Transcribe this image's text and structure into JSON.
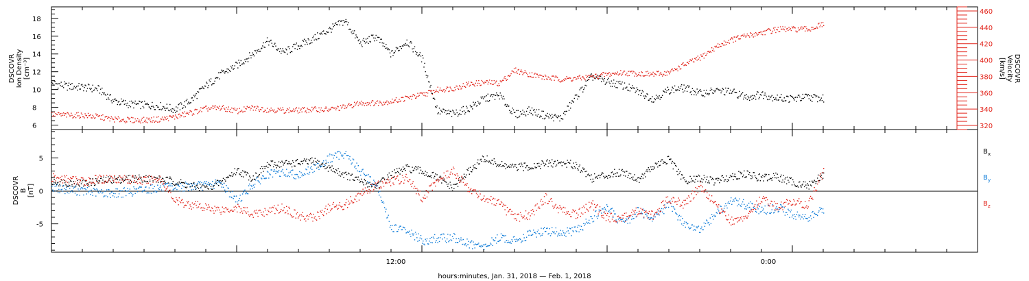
{
  "colors": {
    "black": "#000000",
    "red": "#e2231a",
    "blue": "#0a7ad8"
  },
  "chart_data": [
    {
      "type": "scatter",
      "panel": "top",
      "left_axis": {
        "label_lines": [
          "DSCOVR",
          "Ion Density",
          "[cm⁻³]"
        ],
        "ticks": [
          6,
          8,
          10,
          12,
          14,
          16,
          18
        ],
        "ylim": [
          5.5,
          19.3
        ]
      },
      "right_axis": {
        "label_lines": [
          "DSCOVR",
          "Velocity",
          "[km/s]"
        ],
        "ticks": [
          320,
          340,
          360,
          380,
          400,
          420,
          440,
          460
        ],
        "ylim": [
          315,
          465
        ]
      },
      "series": [
        {
          "axis": "left",
          "color": "#000000",
          "x": [
            0,
            0.5,
            1,
            1.5,
            2,
            2.5,
            3,
            3.5,
            4,
            4.5,
            5,
            5.5,
            6,
            6.5,
            7,
            7.5,
            8,
            8.5,
            9,
            9.5,
            10,
            10.5,
            11,
            11.5,
            12,
            12.5,
            13,
            13.5,
            14,
            14.5,
            15,
            15.5,
            16,
            16.5,
            17,
            17.5,
            18,
            18.5,
            19,
            19.5,
            20,
            20.5,
            21,
            21.5,
            22,
            22.5,
            23,
            23.5,
            24,
            24.5,
            25
          ],
          "y": [
            10.8,
            10.4,
            10.3,
            10.1,
            8.8,
            8.4,
            8.3,
            8.2,
            7.8,
            8.8,
            10.5,
            11.8,
            12.8,
            14.0,
            15.5,
            14.2,
            15.0,
            15.8,
            16.8,
            17.8,
            15.2,
            16.0,
            14.0,
            15.5,
            13.5,
            7.6,
            7.3,
            7.9,
            9.0,
            9.4,
            7.2,
            7.7,
            7.1,
            6.8,
            9.3,
            11.5,
            10.9,
            10.5,
            9.8,
            9.0,
            10.0,
            10.2,
            9.6,
            9.9,
            9.8,
            9.2,
            9.5,
            9.1,
            9.0,
            9.2,
            9.0
          ]
        },
        {
          "axis": "right",
          "color": "#e2231a",
          "x": [
            0,
            0.5,
            1,
            1.5,
            2,
            2.5,
            3,
            3.5,
            4,
            4.5,
            5,
            5.5,
            6,
            6.5,
            7,
            7.5,
            8,
            8.5,
            9,
            9.5,
            10,
            10.5,
            11,
            11.5,
            12,
            12.5,
            13,
            13.5,
            14,
            14.5,
            15,
            15.5,
            16,
            16.5,
            17,
            17.5,
            18,
            18.5,
            19,
            19.5,
            20,
            20.5,
            21,
            21.5,
            22,
            22.5,
            23,
            23.5,
            24,
            24.5,
            25
          ],
          "y": [
            334,
            333,
            333,
            331,
            328,
            327,
            327,
            328,
            331,
            336,
            341,
            342,
            338,
            342,
            340,
            339,
            339,
            340,
            340,
            343,
            348,
            348,
            350,
            354,
            358,
            364,
            366,
            371,
            373,
            372,
            388,
            383,
            379,
            377,
            378,
            380,
            383,
            385,
            384,
            383,
            385,
            395,
            403,
            416,
            425,
            430,
            434,
            438,
            438,
            438,
            444
          ]
        }
      ]
    },
    {
      "type": "scatter",
      "panel": "bottom",
      "left_axis": {
        "label_lines": [
          "DSCOVR",
          "B",
          "[nT]"
        ],
        "ticks": [
          -5,
          0,
          5
        ],
        "ylim": [
          -9.3,
          9.3
        ]
      },
      "legend": [
        {
          "label": "B",
          "sub": "x",
          "color": "#000000"
        },
        {
          "label": "B",
          "sub": "y",
          "color": "#0a7ad8"
        },
        {
          "label": "B",
          "sub": "z",
          "color": "#e2231a"
        }
      ],
      "series": [
        {
          "name": "Bx",
          "color": "#000000",
          "x": [
            0,
            0.5,
            1,
            1.5,
            2,
            2.5,
            3,
            3.5,
            4,
            4.5,
            5,
            5.5,
            6,
            6.5,
            7,
            7.5,
            8,
            8.5,
            9,
            9.5,
            10,
            10.5,
            11,
            11.5,
            12,
            12.5,
            13,
            13.5,
            14,
            14.5,
            15,
            15.5,
            16,
            16.5,
            17,
            17.5,
            18,
            18.5,
            19,
            19.5,
            20,
            20.5,
            21,
            21.5,
            22,
            22.5,
            23,
            23.5,
            24,
            24.5,
            25
          ],
          "y": [
            1.5,
            1.3,
            1.2,
            1.5,
            1.8,
            1.9,
            2.0,
            1.8,
            1.5,
            0.8,
            0.5,
            1.4,
            3.2,
            2.0,
            4.0,
            4.2,
            4.3,
            4.5,
            3.5,
            2.5,
            1.5,
            0.8,
            2.5,
            3.5,
            3.0,
            2.0,
            0.5,
            3.0,
            5.0,
            4.0,
            3.6,
            3.8,
            4.2,
            4.3,
            4.0,
            2.0,
            2.5,
            3.0,
            1.8,
            3.8,
            4.8,
            1.5,
            2.0,
            1.5,
            2.3,
            2.6,
            2.0,
            2.2,
            1.4,
            0.8,
            2.6
          ]
        },
        {
          "name": "By",
          "color": "#0a7ad8",
          "x": [
            0,
            0.5,
            1,
            1.5,
            2,
            2.5,
            3,
            3.5,
            4,
            4.5,
            5,
            5.5,
            6,
            6.5,
            7,
            7.5,
            8,
            8.5,
            9,
            9.5,
            10,
            10.5,
            11,
            11.5,
            12,
            12.5,
            13,
            13.5,
            14,
            14.5,
            15,
            15.5,
            16,
            16.5,
            17,
            17.5,
            18,
            18.5,
            19,
            19.5,
            20,
            20.5,
            21,
            21.5,
            22,
            22.5,
            23,
            23.5,
            24,
            24.5,
            25
          ],
          "y": [
            0.5,
            0.3,
            0.0,
            -0.2,
            -0.3,
            -0.1,
            0.3,
            0.5,
            0.6,
            0.8,
            0.9,
            1.2,
            -1.5,
            1.0,
            2.5,
            2.8,
            2.5,
            3.5,
            5.0,
            5.8,
            3.0,
            1.0,
            -5.5,
            -6.0,
            -7.5,
            -7.2,
            -7.0,
            -8.0,
            -8.5,
            -7.0,
            -7.5,
            -6.5,
            -6.0,
            -6.3,
            -6.0,
            -4.0,
            -2.5,
            -5.0,
            -3.0,
            -4.0,
            -2.0,
            -5.0,
            -6.0,
            -3.5,
            -1.5,
            -2.0,
            -3.0,
            -2.5,
            -3.5,
            -4.0,
            -2.8
          ]
        },
        {
          "name": "Bz",
          "color": "#e2231a",
          "x": [
            0,
            0.5,
            1,
            1.5,
            2,
            2.5,
            3,
            3.5,
            4,
            4.5,
            5,
            5.5,
            6,
            6.5,
            7,
            7.5,
            8,
            8.5,
            9,
            9.5,
            10,
            10.5,
            11,
            11.5,
            12,
            12.5,
            13,
            13.5,
            14,
            14.5,
            15,
            15.5,
            16,
            16.5,
            17,
            17.5,
            18,
            18.5,
            19,
            19.5,
            20,
            20.5,
            21,
            21.5,
            22,
            22.5,
            23,
            23.5,
            24,
            24.5,
            25
          ],
          "y": [
            2.0,
            1.8,
            1.5,
            1.8,
            2.0,
            1.8,
            1.6,
            2.0,
            -1.5,
            -2.0,
            -2.5,
            -2.8,
            -2.5,
            -3.5,
            -3.0,
            -2.5,
            -3.8,
            -4.0,
            -2.5,
            -2.0,
            -0.5,
            0.8,
            1.5,
            2.0,
            -1.0,
            1.8,
            3.0,
            0.5,
            -1.0,
            -2.0,
            -4.0,
            -3.5,
            -1.0,
            -3.0,
            -3.5,
            -2.0,
            -4.0,
            -4.0,
            -3.0,
            -3.8,
            -1.0,
            -2.0,
            0.8,
            -2.0,
            -4.5,
            -4.0,
            -1.0,
            -2.5,
            -1.5,
            -2.0,
            3.0
          ]
        }
      ],
      "xaxis": {
        "tick_labels": [
          "12:00",
          "0:00"
        ],
        "title": "hours:minutes, Jan. 31, 2018 — Feb.  1, 2018"
      }
    }
  ]
}
